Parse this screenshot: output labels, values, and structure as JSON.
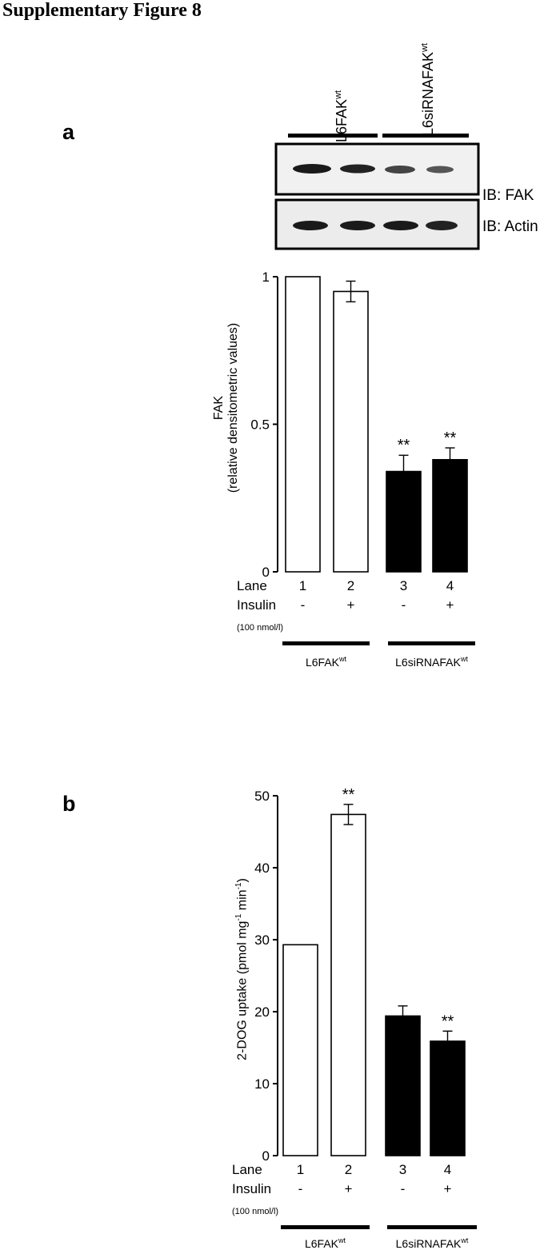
{
  "figure_title": "Supplementary Figure 8",
  "panels": [
    {
      "letter": "a",
      "blot": {
        "group_labels": [
          {
            "name": "L6FAK",
            "sup": "wt"
          },
          {
            "name": "L6siRNAFAK",
            "sup": "wt"
          }
        ],
        "rows": [
          "IB: FAK",
          "IB: Actin"
        ]
      }
    },
    {
      "letter": "b"
    }
  ],
  "chart_data": [
    {
      "type": "bar",
      "categories": [
        "1",
        "2",
        "3",
        "4"
      ],
      "values": [
        1.0,
        0.95,
        0.34,
        0.38
      ],
      "errors": [
        0,
        0.035,
        0.055,
        0.04
      ],
      "bar_fill": [
        "#ffffff",
        "#ffffff",
        "#000000",
        "#000000"
      ],
      "significance": [
        "",
        "",
        "**",
        "**"
      ],
      "ylabel": "FAK",
      "ylabel_sub": "(relative densitometric values)",
      "ylim": [
        0,
        1
      ],
      "yticks": [
        "0",
        "0.5",
        "1"
      ],
      "lane_label": "Lane",
      "insulin_label": "Insulin",
      "insulin_values": [
        "-",
        "+",
        "-",
        "+"
      ],
      "insulin_note": "(100 nmol/l)",
      "groups": [
        {
          "name": "L6FAK",
          "sup": "wt"
        },
        {
          "name": "L6siRNAFAK",
          "sup": "wt"
        }
      ]
    },
    {
      "type": "bar",
      "categories": [
        "1",
        "2",
        "3",
        "4"
      ],
      "values": [
        29.3,
        47.4,
        19.4,
        15.9
      ],
      "errors": [
        0,
        1.4,
        1.4,
        1.4
      ],
      "bar_fill": [
        "#ffffff",
        "#ffffff",
        "#000000",
        "#000000"
      ],
      "significance": [
        "",
        "**",
        "",
        "**"
      ],
      "ylabel": "2-DOG uptake (pmol mg",
      "ylabel_sup1": "-1",
      "ylabel_mid": " min",
      "ylabel_sup2": "-1",
      "ylabel_end": ")",
      "ylim": [
        0,
        50
      ],
      "yticks": [
        "0",
        "10",
        "20",
        "30",
        "40",
        "50"
      ],
      "lane_label": "Lane",
      "insulin_label": "Insulin",
      "insulin_values": [
        "-",
        "+",
        "-",
        "+"
      ],
      "insulin_note": "(100 nmol/l)",
      "groups": [
        {
          "name": "L6FAK",
          "sup": "wt"
        },
        {
          "name": "L6siRNAFAK",
          "sup": "wt"
        }
      ]
    }
  ]
}
